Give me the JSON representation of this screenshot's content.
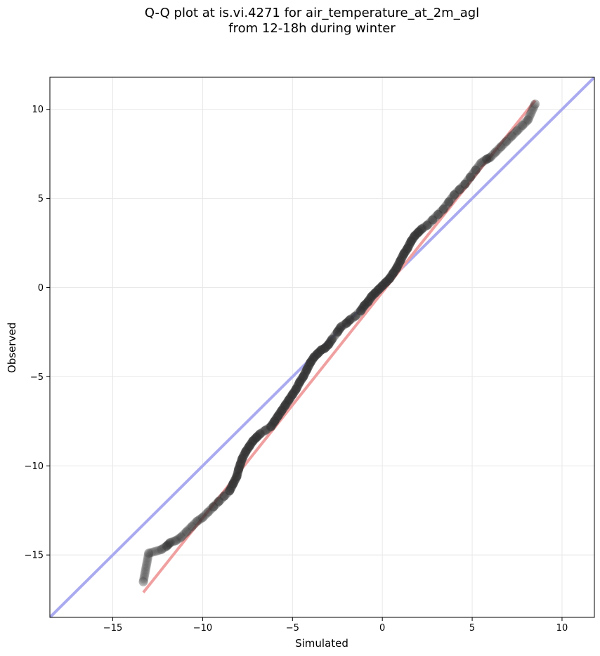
{
  "chart_data": {
    "type": "scatter",
    "title_line1": "Q-Q plot at is.vi.4271 for air_temperature_at_2m_agl",
    "title_line2": "from 12-18h during winter",
    "xlabel": "Simulated",
    "ylabel": "Observed",
    "xlim": [
      -18.5,
      11.8
    ],
    "ylim": [
      -18.5,
      11.8
    ],
    "xticks": [
      -15,
      -10,
      -5,
      0,
      5,
      10
    ],
    "yticks": [
      -15,
      -10,
      -5,
      0,
      5,
      10
    ],
    "xtick_labels": [
      "−15",
      "−10",
      "−5",
      "0",
      "5",
      "10"
    ],
    "ytick_labels": [
      "−15",
      "−10",
      "−5",
      "0",
      "5",
      "10"
    ],
    "grid": true,
    "colors": {
      "points": "#333333",
      "one_to_one": "#aaaaf0",
      "fit": "#f0a0a0"
    },
    "one_to_one_line": {
      "x": [
        -18.5,
        11.8
      ],
      "y": [
        -18.5,
        11.8
      ]
    },
    "fit_line": {
      "x": [
        -13.3,
        8.5
      ],
      "y": [
        -17.1,
        10.5
      ]
    },
    "points": {
      "x": [
        -13.3,
        -13.0,
        -12.3,
        -12.0,
        -11.8,
        -11.5,
        -11.2,
        -10.9,
        -10.6,
        -10.3,
        -10.0,
        -9.7,
        -9.4,
        -9.1,
        -8.8,
        -8.5,
        -8.3,
        -8.1,
        -8.0,
        -7.9,
        -7.8,
        -7.6,
        -7.4,
        -7.2,
        -7.0,
        -6.8,
        -6.5,
        -6.2,
        -6.0,
        -5.8,
        -5.6,
        -5.4,
        -5.2,
        -5.0,
        -4.8,
        -4.6,
        -4.4,
        -4.2,
        -4.0,
        -3.8,
        -3.6,
        -3.4,
        -3.2,
        -3.0,
        -2.8,
        -2.5,
        -2.3,
        -2.0,
        -1.8,
        -1.5,
        -1.2,
        -1.0,
        -0.8,
        -0.6,
        -0.4,
        -0.2,
        0.0,
        0.2,
        0.4,
        0.6,
        0.8,
        1.0,
        1.2,
        1.4,
        1.6,
        1.8,
        2.0,
        2.2,
        2.5,
        2.8,
        3.1,
        3.4,
        3.7,
        4.0,
        4.3,
        4.6,
        4.9,
        5.2,
        5.5,
        5.8,
        6.0,
        6.3,
        6.6,
        6.9,
        7.2,
        7.5,
        7.8,
        8.1,
        8.5
      ],
      "y": [
        -16.5,
        -14.9,
        -14.7,
        -14.5,
        -14.3,
        -14.2,
        -14.0,
        -13.7,
        -13.4,
        -13.1,
        -12.9,
        -12.6,
        -12.3,
        -12.0,
        -11.7,
        -11.4,
        -11.0,
        -10.6,
        -10.2,
        -9.9,
        -9.6,
        -9.2,
        -8.9,
        -8.6,
        -8.4,
        -8.2,
        -8.0,
        -7.8,
        -7.5,
        -7.2,
        -6.9,
        -6.6,
        -6.3,
        -6.0,
        -5.7,
        -5.3,
        -5.0,
        -4.6,
        -4.2,
        -3.9,
        -3.7,
        -3.5,
        -3.4,
        -3.2,
        -2.9,
        -2.5,
        -2.2,
        -2.0,
        -1.8,
        -1.6,
        -1.3,
        -1.0,
        -0.8,
        -0.5,
        -0.3,
        -0.1,
        0.1,
        0.3,
        0.5,
        0.8,
        1.1,
        1.5,
        1.9,
        2.2,
        2.6,
        2.9,
        3.1,
        3.3,
        3.5,
        3.8,
        4.1,
        4.4,
        4.8,
        5.2,
        5.5,
        5.8,
        6.2,
        6.6,
        7.0,
        7.2,
        7.3,
        7.6,
        7.9,
        8.2,
        8.5,
        8.8,
        9.1,
        9.4,
        10.3
      ]
    }
  }
}
